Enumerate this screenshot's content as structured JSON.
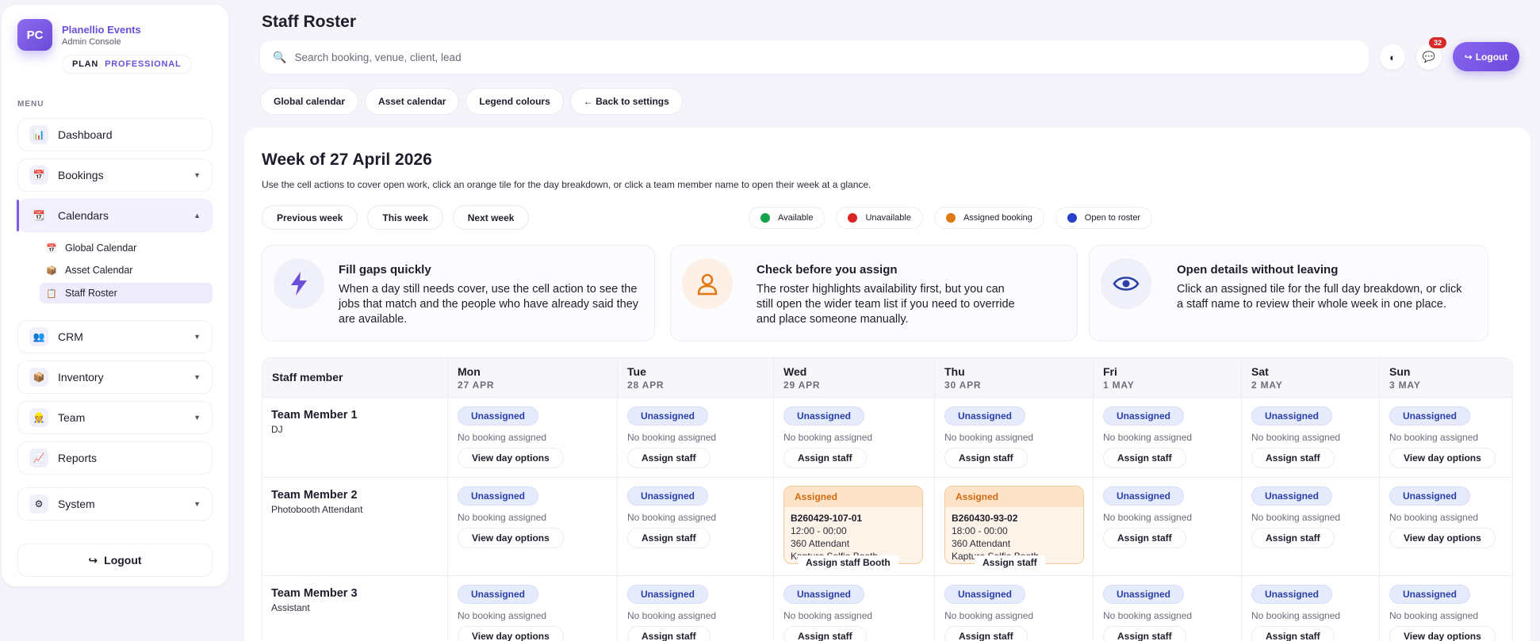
{
  "brand": {
    "logo": "PC",
    "name": "Planellio Events",
    "subtitle": "Admin Console",
    "plan_label": "PLAN",
    "plan_value": "PROFESSIONAL"
  },
  "sidebar": {
    "menu_label": "MENU",
    "items": [
      {
        "label": "Dashboard",
        "icon": "bar-chart-icon"
      },
      {
        "label": "Bookings",
        "icon": "calendar-icon",
        "expandable": true
      },
      {
        "label": "Calendars",
        "icon": "calendar-icon",
        "expandable": true,
        "active": true
      },
      {
        "label": "CRM",
        "icon": "users-icon",
        "expandable": true
      },
      {
        "label": "Inventory",
        "icon": "box-icon",
        "expandable": true
      },
      {
        "label": "Team",
        "icon": "team-icon",
        "expandable": true
      },
      {
        "label": "Reports",
        "icon": "line-chart-icon"
      },
      {
        "label": "System",
        "icon": "gear-icon",
        "expandable": true
      }
    ],
    "calendar_subitems": [
      {
        "label": "Global Calendar",
        "icon": "calendar-icon"
      },
      {
        "label": "Asset Calendar",
        "icon": "box-icon"
      },
      {
        "label": "Staff Roster",
        "icon": "clipboard-icon",
        "active": true
      }
    ],
    "logout_label": "Logout"
  },
  "header": {
    "title": "Staff Roster",
    "search_placeholder": "Search booking, venue, client, lead",
    "notification_count": "32",
    "logout_label": "Logout",
    "quick_links": [
      "Global calendar",
      "Asset calendar",
      "Legend colours",
      "← Back to settings"
    ]
  },
  "week": {
    "title": "Week of 27 April 2026",
    "description": "Use the cell actions to cover open work, click an orange tile for the day breakdown, or click a team member name to open their week at a glance.",
    "nav": [
      "Previous week",
      "This week",
      "Next week"
    ],
    "legend": [
      {
        "label": "Available",
        "color": "#16a34a"
      },
      {
        "label": "Unavailable",
        "color": "#dc2626"
      },
      {
        "label": "Assigned booking",
        "color": "#e07a10"
      },
      {
        "label": "Open to roster",
        "color": "#2540c9"
      }
    ]
  },
  "tips": [
    {
      "title": "Fill gaps quickly",
      "body": "When a day still needs cover, use the cell action to see the jobs that match and the people who have already said they are available.",
      "icon": "lightning-icon"
    },
    {
      "title": "Check before you assign",
      "body": "The roster highlights availability first, but you can still open the wider team list if you need to override and place someone manually.",
      "icon": "person-icon"
    },
    {
      "title": "Open details without leaving",
      "body": "Click an assigned tile for the full day breakdown, or click a staff name to review their whole week in one place.",
      "icon": "eye-icon"
    }
  ],
  "roster": {
    "staff_header": "Staff member",
    "days": [
      {
        "day": "Mon",
        "date": "27 APR"
      },
      {
        "day": "Tue",
        "date": "28 APR"
      },
      {
        "day": "Wed",
        "date": "29 APR"
      },
      {
        "day": "Thu",
        "date": "30 APR"
      },
      {
        "day": "Fri",
        "date": "1 MAY"
      },
      {
        "day": "Sat",
        "date": "2 MAY"
      },
      {
        "day": "Sun",
        "date": "3 MAY"
      }
    ],
    "labels": {
      "unassigned": "Unassigned",
      "no_booking": "No booking assigned",
      "assigned": "Assigned"
    },
    "rows": [
      {
        "name": "Team Member 1",
        "role": "DJ",
        "cells": [
          {
            "status": "unassigned",
            "action": "View day options"
          },
          {
            "status": "unassigned",
            "action": "Assign staff"
          },
          {
            "status": "unassigned",
            "action": "Assign staff"
          },
          {
            "status": "unassigned",
            "action": "Assign staff"
          },
          {
            "status": "unassigned",
            "action": "Assign staff"
          },
          {
            "status": "unassigned",
            "action": "Assign staff"
          },
          {
            "status": "unassigned",
            "action": "View day options"
          }
        ]
      },
      {
        "name": "Team Member 2",
        "role": "Photobooth Attendant",
        "cells": [
          {
            "status": "unassigned",
            "action": "View day options"
          },
          {
            "status": "unassigned",
            "action": "Assign staff"
          },
          {
            "status": "assigned",
            "ref": "B260429-107-01",
            "time": "12:00 - 00:00",
            "role": "360 Attendant",
            "item": "Kapture Selfie Booth",
            "action": "Assign staff Booth"
          },
          {
            "status": "assigned",
            "ref": "B260430-93-02",
            "time": "18:00 - 00:00",
            "role": "360 Attendant",
            "item": "Kapture Selfie Booth",
            "action": "Assign staff"
          },
          {
            "status": "unassigned",
            "action": "Assign staff"
          },
          {
            "status": "unassigned",
            "action": "Assign staff"
          },
          {
            "status": "unassigned",
            "action": "View day options"
          }
        ]
      },
      {
        "name": "Team Member 3",
        "role": "Assistant",
        "cells": [
          {
            "status": "unassigned",
            "action": "View day options"
          },
          {
            "status": "unassigned",
            "action": "Assign staff"
          },
          {
            "status": "unassigned",
            "action": "Assign staff"
          },
          {
            "status": "unassigned",
            "action": "Assign staff"
          },
          {
            "status": "unassigned",
            "action": "Assign staff"
          },
          {
            "status": "unassigned",
            "action": "Assign staff"
          },
          {
            "status": "unassigned",
            "action": "View day options"
          }
        ]
      }
    ]
  },
  "colors": {
    "accent": "#6b4fd8",
    "assigned": "#d26a12",
    "unassigned": "#2a3fa8"
  }
}
